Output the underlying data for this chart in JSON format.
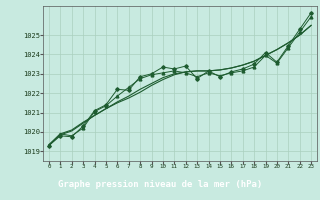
{
  "title": "Graphe pression niveau de la mer (hPa)",
  "bg_color": "#c8eae0",
  "plot_bg_color": "#c8eae0",
  "footer_bg": "#2d6e3e",
  "footer_text_color": "#ffffff",
  "grid_color": "#aad0be",
  "line_color": "#1e5c30",
  "xlim": [
    -0.5,
    23.5
  ],
  "ylim": [
    1018.5,
    1026.5
  ],
  "yticks": [
    1019,
    1020,
    1021,
    1022,
    1023,
    1024,
    1025
  ],
  "xticks": [
    0,
    1,
    2,
    3,
    4,
    5,
    6,
    7,
    8,
    9,
    10,
    11,
    12,
    13,
    14,
    15,
    16,
    17,
    18,
    19,
    20,
    21,
    22,
    23
  ],
  "series_zigzag": [
    1019.3,
    1019.8,
    1019.75,
    1020.3,
    1021.1,
    1021.4,
    1022.2,
    1022.15,
    1022.85,
    1023.0,
    1023.35,
    1023.25,
    1023.4,
    1022.75,
    1023.15,
    1022.85,
    1023.1,
    1023.25,
    1023.5,
    1024.1,
    1023.6,
    1024.45,
    1025.3,
    1026.15
  ],
  "series_zigzag2": [
    1019.35,
    1019.9,
    1019.8,
    1020.2,
    1021.05,
    1021.35,
    1021.85,
    1022.3,
    1022.75,
    1022.95,
    1023.05,
    1023.15,
    1023.05,
    1022.85,
    1023.05,
    1022.9,
    1023.05,
    1023.15,
    1023.35,
    1023.95,
    1023.55,
    1024.35,
    1025.15,
    1025.95
  ],
  "series_smooth1": [
    1019.3,
    1019.85,
    1020.05,
    1020.45,
    1020.85,
    1021.2,
    1021.55,
    1021.85,
    1022.2,
    1022.5,
    1022.8,
    1023.0,
    1023.1,
    1023.15,
    1023.15,
    1023.2,
    1023.3,
    1023.45,
    1023.65,
    1023.95,
    1024.25,
    1024.6,
    1025.0,
    1025.5
  ],
  "series_smooth2": [
    1019.3,
    1019.9,
    1020.1,
    1020.5,
    1020.85,
    1021.2,
    1021.5,
    1021.75,
    1022.05,
    1022.4,
    1022.7,
    1022.95,
    1023.1,
    1023.15,
    1023.15,
    1023.2,
    1023.3,
    1023.45,
    1023.65,
    1023.95,
    1024.25,
    1024.6,
    1025.0,
    1025.5
  ]
}
